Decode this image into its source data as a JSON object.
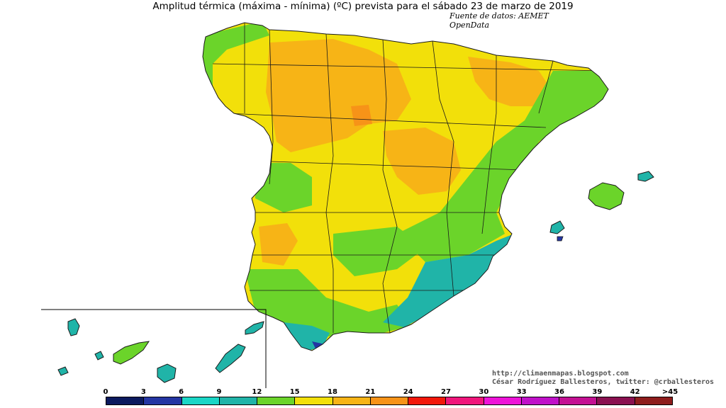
{
  "title": "Amplitud térmica (máxima - mínima) (ºC) prevista para el sábado 23 de marzo de 2019",
  "source": "Fuente de datos: AEMET OpenData",
  "credit": {
    "blog": "http://climaenmapas.blogspot.com",
    "author": "César Rodríguez Ballesteros, twitter: @crballesteros"
  },
  "legend": {
    "ticks": [
      "0",
      "3",
      "6",
      "9",
      "12",
      "15",
      "18",
      "21",
      "24",
      "27",
      "30",
      "33",
      "36",
      "39",
      "42",
      ">45"
    ],
    "colors": [
      "#0b1a5e",
      "#2436a3",
      "#1ad6c6",
      "#20b4a8",
      "#6bd42a",
      "#f2e00a",
      "#f7b416",
      "#f79318",
      "#f2170a",
      "#f0157b",
      "#ee12d8",
      "#c010c9",
      "#c41093",
      "#8a1050",
      "#8e1c1c"
    ]
  },
  "map": {
    "region_colors": {
      "low": "#20b4a8",
      "mid_low": "#6bd42a",
      "mid": "#f2e00a",
      "mid_high": "#f7b416",
      "high": "#f79318",
      "very_low": "#2436a3"
    },
    "icons": [
      "iberian-peninsula-map",
      "balearic-islands-map",
      "canary-islands-map"
    ]
  }
}
